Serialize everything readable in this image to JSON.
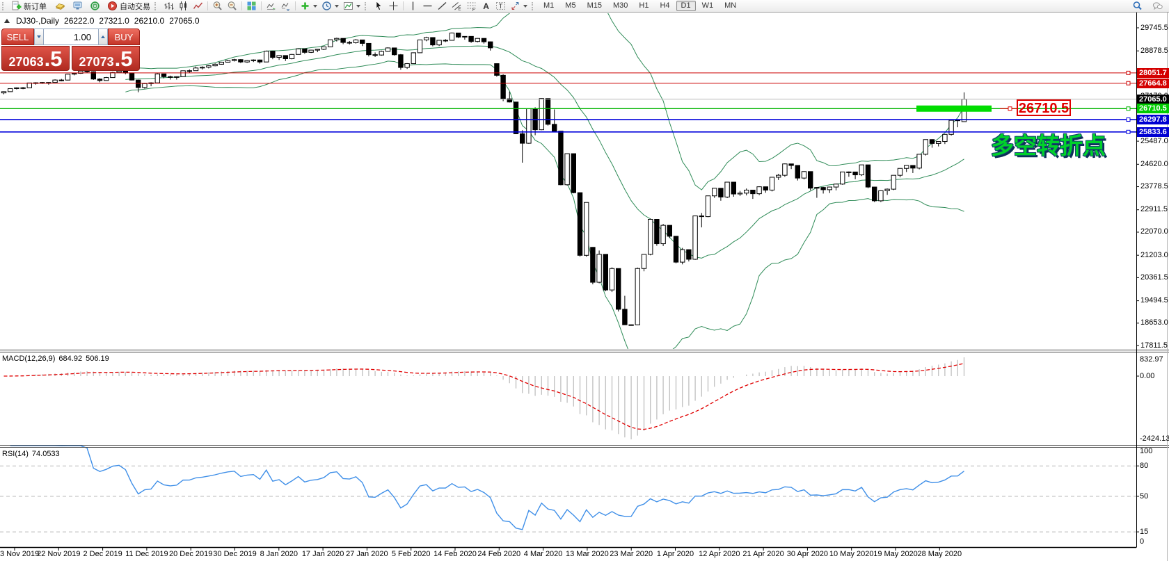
{
  "toolbar": {
    "new_order_label": "新订单",
    "autotrading_label": "自动交易",
    "timeframes": [
      "M1",
      "M5",
      "M15",
      "M30",
      "H1",
      "H4",
      "D1",
      "W1",
      "MN"
    ],
    "active_timeframe": "D1",
    "icons": [
      "new-order",
      "gold-ingot",
      "remote-monitor",
      "community-globe",
      "autotrading",
      "bar-chart",
      "candle-chart",
      "line-chart",
      "zoom-in",
      "zoom-out",
      "tile-windows",
      "chart-shift",
      "auto-scroll",
      "indicators",
      "periods",
      "templates",
      "cursor",
      "crosshair",
      "vertical-line",
      "horizontal-line",
      "trendline",
      "channel",
      "fibonacci",
      "text",
      "text-label",
      "arrows",
      "search",
      "chat"
    ]
  },
  "header": {
    "symbol": "DJ30-,Daily",
    "ohlc": [
      "26222.0",
      "27321.0",
      "26210.0",
      "27065.0"
    ]
  },
  "trade_panel": {
    "sell_label": "SELL",
    "buy_label": "BUY",
    "volume": "1.00",
    "sell_price_main": "27063",
    "sell_price_frac": ".5",
    "buy_price_main": "27073",
    "buy_price_frac": ".5"
  },
  "chart_data": {
    "type": "candlestick",
    "symbol": "DJ30",
    "timeframe": "Daily",
    "price_ticks": [
      "29745.5",
      "28878.5",
      "27170.0",
      "25487.0",
      "24620.0",
      "23778.5",
      "22911.5",
      "22070.0",
      "21203.0",
      "20361.5",
      "19494.5",
      "18653.0",
      "17811.5"
    ],
    "dates": [
      "3 Nov 2019",
      "22 Nov 2019",
      "2 Dec 2019",
      "11 Dec 2019",
      "20 Dec 2019",
      "30 Dec 2019",
      "8 Jan 2020",
      "17 Jan 2020",
      "27 Jan 2020",
      "5 Feb 2020",
      "14 Feb 2020",
      "24 Feb 2020",
      "4 Mar 2020",
      "13 Mar 2020",
      "23 Mar 2020",
      "1 Apr 2020",
      "12 Apr 2020",
      "21 Apr 2020",
      "30 Apr 2020",
      "10 May 2020",
      "19 May 2020",
      "28 May 2020"
    ],
    "levels": [
      {
        "price": 28051.7,
        "label": "28051.7",
        "line": "#cc0000",
        "bg": "#d40000",
        "w": 1
      },
      {
        "price": 27664.8,
        "label": "27664.8",
        "line": "#cc0000",
        "bg": "#d40000",
        "w": 1
      },
      {
        "price": 27065.0,
        "label": "27065.0",
        "line": "#b6b6b6",
        "bg": "#000000",
        "w": 1,
        "current": true
      },
      {
        "price": 26710.5,
        "label": "26710.5",
        "line": "#00b400",
        "bg": "#00cc00",
        "w": 1.4
      },
      {
        "price": 26297.8,
        "label": "26297.8",
        "line": "#0000dc",
        "bg": "#0000d2",
        "w": 1.7
      },
      {
        "price": 25833.6,
        "label": "25833.6",
        "line": "#0000dc",
        "bg": "#0000d2",
        "w": 1.7
      }
    ],
    "highlight_bar": {
      "label": "26710.5",
      "color": "#00dd00",
      "box_color": "#e00000"
    },
    "annotation": "多空转折点",
    "annotation_color": "#00d22a",
    "bollinger": {
      "period": 20,
      "deviation": 2,
      "color": "#2e8b57"
    },
    "macd": {
      "name": "MACD(12,26,9)",
      "value_main": "684.92",
      "value_signal": "506.19",
      "axis": [
        "832.97",
        "0.00",
        "-2424.13"
      ],
      "histogram_color": "#c4c4c4",
      "signal_color": "#e00000",
      "params": {
        "fast": 12,
        "slow": 26,
        "signal": 9
      }
    },
    "rsi": {
      "name": "RSI(14)",
      "value": "74.0533",
      "axis": [
        "100",
        "80",
        "50",
        "15",
        "0"
      ],
      "level_lines": [
        80,
        50,
        15
      ],
      "line_color": "#3f8fe8",
      "period": 14
    },
    "candles": [
      [
        27300,
        27360,
        27250,
        27347
      ],
      [
        27347,
        27470,
        27340,
        27462
      ],
      [
        27462,
        27510,
        27430,
        27493
      ],
      [
        27493,
        27520,
        27440,
        27493
      ],
      [
        27493,
        27680,
        27490,
        27675
      ],
      [
        27675,
        27700,
        27610,
        27681
      ],
      [
        27681,
        27710,
        27640,
        27691
      ],
      [
        27691,
        27700,
        27610,
        27691
      ],
      [
        27691,
        27810,
        27675,
        27784
      ],
      [
        27784,
        27825,
        27735,
        27782
      ],
      [
        27782,
        28015,
        27770,
        28005
      ],
      [
        28005,
        28060,
        27960,
        28036
      ],
      [
        28036,
        28145,
        28015,
        28121
      ],
      [
        28121,
        28140,
        28050,
        28095
      ],
      [
        28095,
        28110,
        27790,
        27821
      ],
      [
        27821,
        27850,
        27700,
        27766
      ],
      [
        27766,
        27900,
        27760,
        27876
      ],
      [
        27876,
        28090,
        27870,
        28066
      ],
      [
        28066,
        28150,
        28060,
        28121
      ],
      [
        28121,
        28130,
        28000,
        28051
      ],
      [
        28051,
        28060,
        27770,
        27783
      ],
      [
        27783,
        27800,
        27325,
        27503
      ],
      [
        27503,
        27680,
        27460,
        27650
      ],
      [
        27650,
        27700,
        27550,
        27678
      ],
      [
        27678,
        28035,
        27675,
        28015
      ],
      [
        28015,
        28020,
        27850,
        27910
      ],
      [
        27910,
        27950,
        27800,
        27882
      ],
      [
        27882,
        27925,
        27800,
        27912
      ],
      [
        27912,
        28140,
        27910,
        28132
      ],
      [
        28132,
        28180,
        28050,
        28135
      ],
      [
        28135,
        28290,
        28130,
        28236
      ],
      [
        28236,
        28300,
        28180,
        28267
      ],
      [
        28267,
        28340,
        28220,
        28319
      ],
      [
        28319,
        28410,
        28300,
        28377
      ],
      [
        28377,
        28470,
        28360,
        28455
      ],
      [
        28455,
        28545,
        28440,
        28515
      ],
      [
        28515,
        28580,
        28480,
        28551
      ],
      [
        28551,
        28570,
        28420,
        28462
      ],
      [
        28462,
        28540,
        28430,
        28516
      ],
      [
        28516,
        28560,
        28460,
        28538
      ],
      [
        28538,
        28550,
        28400,
        28462
      ],
      [
        28462,
        28890,
        28460,
        28869
      ],
      [
        28869,
        28880,
        28565,
        28635
      ],
      [
        28635,
        28720,
        28540,
        28704
      ],
      [
        28704,
        28710,
        28500,
        28584
      ],
      [
        28584,
        28760,
        28560,
        28745
      ],
      [
        28745,
        28965,
        28740,
        28957
      ],
      [
        28957,
        28960,
        28770,
        28824
      ],
      [
        28824,
        28920,
        28800,
        28907
      ],
      [
        28907,
        28950,
        28830,
        28939
      ],
      [
        28939,
        29040,
        28910,
        29030
      ],
      [
        29030,
        29300,
        29020,
        29297
      ],
      [
        29297,
        29375,
        29230,
        29348
      ],
      [
        29348,
        29350,
        29130,
        29196
      ],
      [
        29196,
        29250,
        29120,
        29186
      ],
      [
        29186,
        29320,
        29150,
        29290
      ],
      [
        29290,
        29300,
        29060,
        29160
      ],
      [
        29160,
        29170,
        28670,
        28736
      ],
      [
        28736,
        28820,
        28650,
        28723
      ],
      [
        28723,
        28890,
        28700,
        28860
      ],
      [
        28860,
        29010,
        28840,
        28990
      ],
      [
        28990,
        29000,
        28700,
        28734
      ],
      [
        28734,
        28760,
        28170,
        28256
      ],
      [
        28256,
        28420,
        28200,
        28400
      ],
      [
        28400,
        28820,
        28390,
        28808
      ],
      [
        28808,
        29300,
        28800,
        29291
      ],
      [
        29291,
        29410,
        29240,
        29380
      ],
      [
        29380,
        29390,
        29050,
        29103
      ],
      [
        29103,
        29280,
        29060,
        29277
      ],
      [
        29277,
        29320,
        29210,
        29276
      ],
      [
        29276,
        29568,
        29270,
        29551
      ],
      [
        29551,
        29560,
        29360,
        29398
      ],
      [
        29398,
        29430,
        29300,
        29423
      ],
      [
        29423,
        29430,
        29180,
        29232
      ],
      [
        29232,
        29360,
        29200,
        29348
      ],
      [
        29348,
        29350,
        29150,
        29220
      ],
      [
        29220,
        29230,
        28890,
        28992
      ],
      [
        28400,
        28410,
        27910,
        27961
      ],
      [
        27961,
        28000,
        26990,
        27081
      ],
      [
        27081,
        27350,
        26940,
        26958
      ],
      [
        26958,
        26960,
        25750,
        25767
      ],
      [
        25767,
        25900,
        24680,
        25409
      ],
      [
        25409,
        26710,
        25390,
        26703
      ],
      [
        26703,
        26760,
        25710,
        25917
      ],
      [
        25917,
        27100,
        25900,
        27090
      ],
      [
        27090,
        27100,
        26070,
        26121
      ],
      [
        26121,
        26680,
        25850,
        25865
      ],
      [
        25865,
        25870,
        23830,
        23851
      ],
      [
        23851,
        25030,
        23820,
        25018
      ],
      [
        25018,
        25020,
        23530,
        23553
      ],
      [
        23553,
        23560,
        21150,
        21200
      ],
      [
        21200,
        23190,
        21150,
        23186
      ],
      [
        21500,
        21510,
        20110,
        20188
      ],
      [
        20188,
        21380,
        20150,
        21237
      ],
      [
        21237,
        21240,
        19850,
        19899
      ],
      [
        19899,
        20750,
        19820,
        20704
      ],
      [
        20704,
        20710,
        19090,
        19174
      ],
      [
        19174,
        19680,
        18590,
        18592
      ],
      [
        18592,
        18600,
        18570,
        18591
      ],
      [
        18591,
        20740,
        18580,
        20705
      ],
      [
        20705,
        21240,
        20600,
        21237
      ],
      [
        21237,
        22580,
        21200,
        22552
      ],
      [
        22552,
        22560,
        21560,
        21637
      ],
      [
        21637,
        22380,
        21550,
        22327
      ],
      [
        22327,
        22330,
        21850,
        21917
      ],
      [
        21917,
        21920,
        20900,
        20944
      ],
      [
        20944,
        21480,
        20860,
        21413
      ],
      [
        21413,
        21420,
        20970,
        21052
      ],
      [
        21052,
        22690,
        21030,
        22680
      ],
      [
        22680,
        22790,
        22250,
        22654
      ],
      [
        22654,
        23440,
        22630,
        23434
      ],
      [
        23434,
        23730,
        23360,
        23719
      ],
      [
        23719,
        23720,
        23250,
        23390
      ],
      [
        23390,
        23960,
        23350,
        23949
      ],
      [
        23949,
        23950,
        23400,
        23504
      ],
      [
        23504,
        23620,
        23430,
        23537
      ],
      [
        23537,
        23710,
        23450,
        23650
      ],
      [
        23650,
        23660,
        23320,
        23515
      ],
      [
        23515,
        23790,
        23460,
        23775
      ],
      [
        23775,
        23780,
        23550,
        23651
      ],
      [
        23651,
        24140,
        23600,
        24133
      ],
      [
        24133,
        24260,
        24030,
        24207
      ],
      [
        24207,
        24650,
        24150,
        24634
      ],
      [
        24634,
        24640,
        24440,
        24576
      ],
      [
        24576,
        24580,
        24010,
        24102
      ],
      [
        24102,
        24360,
        24050,
        24346
      ],
      [
        24346,
        24350,
        23640,
        23724
      ],
      [
        23724,
        23760,
        23360,
        23749
      ],
      [
        23749,
        23770,
        23520,
        23665
      ],
      [
        23665,
        23780,
        23540,
        23765
      ],
      [
        23765,
        23890,
        23640,
        23876
      ],
      [
        23876,
        24340,
        23850,
        24332
      ],
      [
        24332,
        24350,
        24150,
        24331
      ],
      [
        24331,
        24340,
        24060,
        24222
      ],
      [
        24222,
        24600,
        24180,
        24598
      ],
      [
        24598,
        24600,
        23720,
        23765
      ],
      [
        23765,
        23770,
        23200,
        23248
      ],
      [
        23248,
        23640,
        23200,
        23626
      ],
      [
        23626,
        23710,
        23470,
        23685
      ],
      [
        23685,
        24210,
        23650,
        24206
      ],
      [
        24206,
        24470,
        24130,
        24465
      ],
      [
        24465,
        24580,
        24330,
        24575
      ],
      [
        24575,
        24580,
        24290,
        24476
      ],
      [
        24476,
        25000,
        24430,
        24996
      ],
      [
        24996,
        25550,
        24950,
        25548
      ],
      [
        25548,
        25560,
        25240,
        25401
      ],
      [
        25401,
        25480,
        25290,
        25475
      ],
      [
        25475,
        25750,
        25380,
        25743
      ],
      [
        25743,
        26280,
        25700,
        26270
      ],
      [
        26270,
        26290,
        26010,
        26282
      ],
      [
        26222,
        27321,
        26210,
        27065
      ]
    ]
  }
}
